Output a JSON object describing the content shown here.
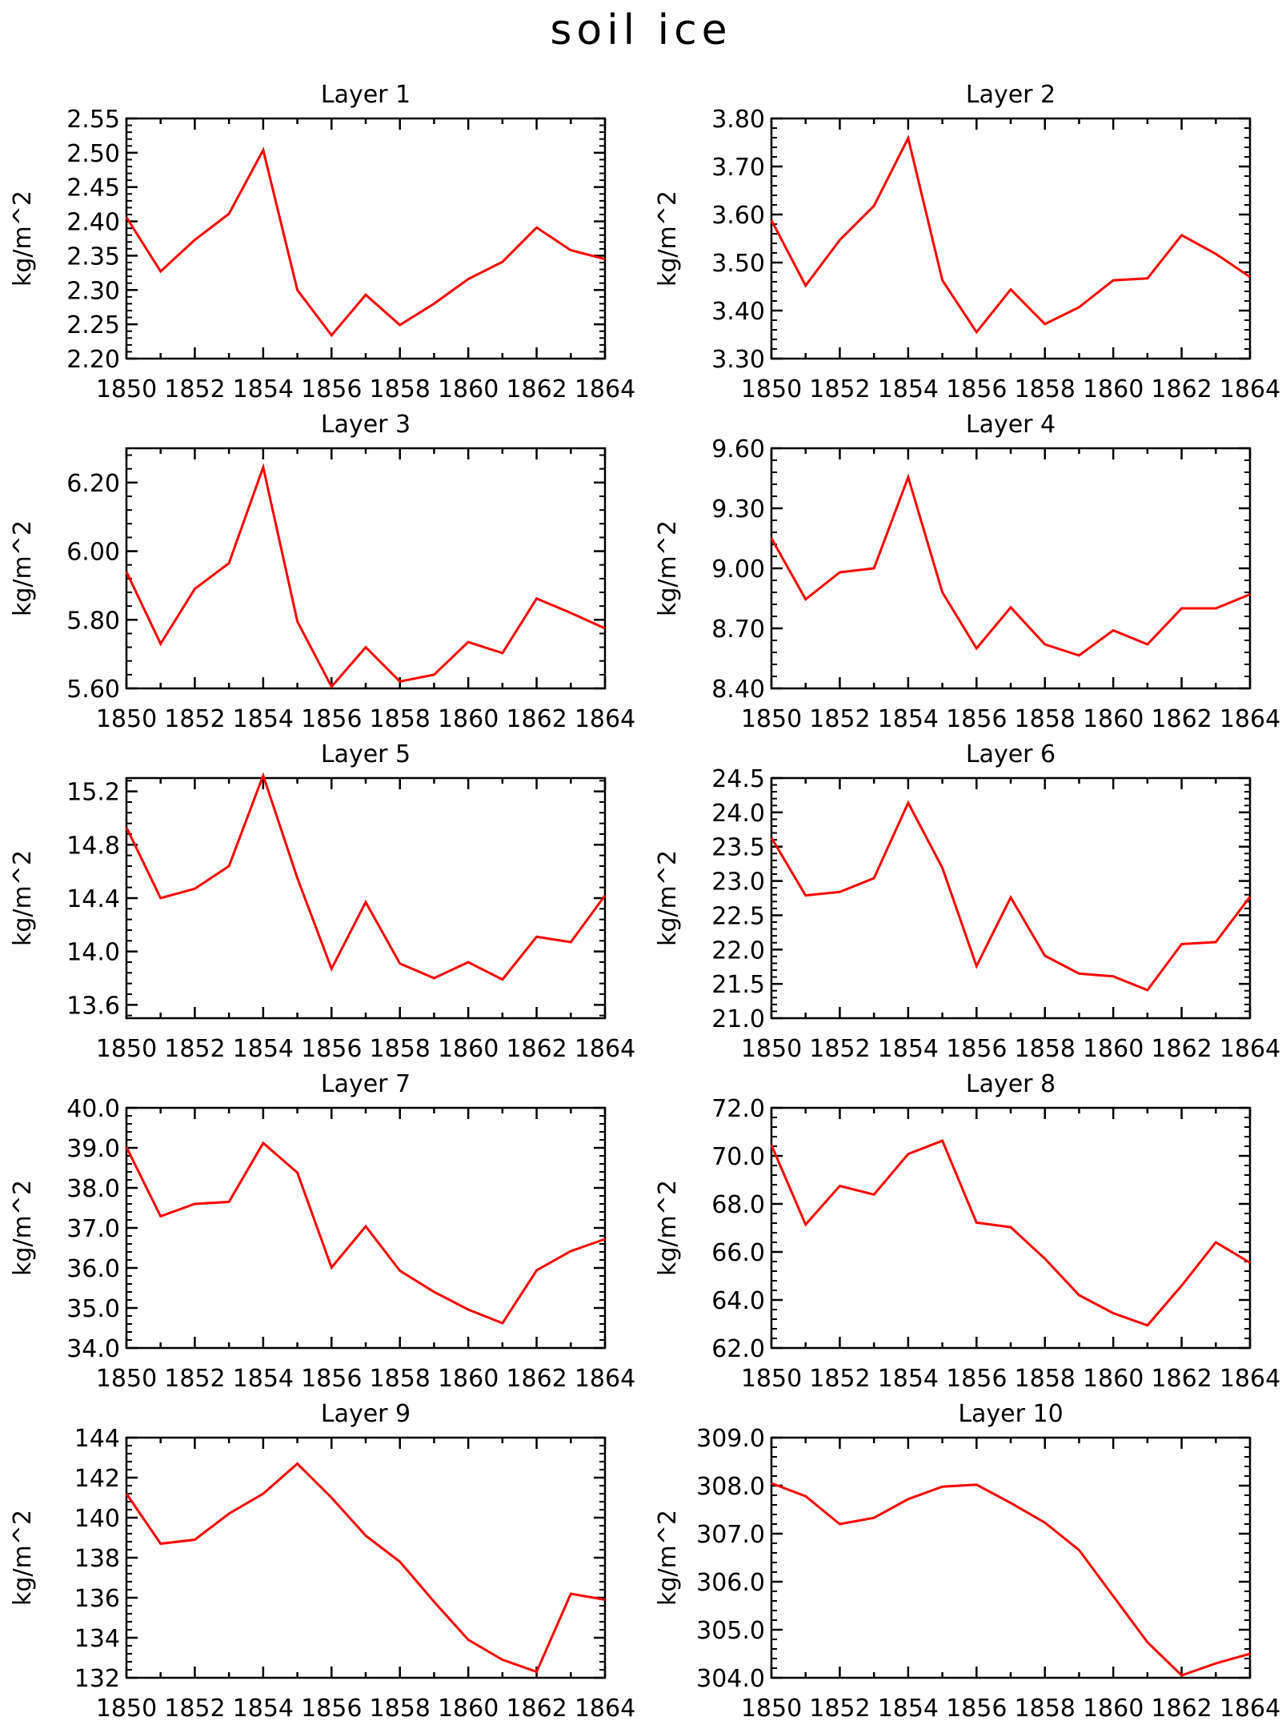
{
  "title": "soil ice",
  "chart_data": [
    {
      "type": "line",
      "title": "Layer 1",
      "ylabel": "kg/m^2",
      "x": [
        1850,
        1851,
        1852,
        1853,
        1854,
        1855,
        1856,
        1857,
        1858,
        1859,
        1860,
        1861,
        1862,
        1863,
        1864
      ],
      "ylim": [
        2.2,
        2.55
      ],
      "yticks": [
        "2.20",
        "2.25",
        "2.30",
        "2.35",
        "2.40",
        "2.45",
        "2.50",
        "2.55"
      ],
      "xticks": [
        "1850",
        "1852",
        "1854",
        "1856",
        "1858",
        "1860",
        "1862",
        "1864"
      ],
      "series": [
        {
          "values": [
            2.406,
            2.327,
            2.373,
            2.411,
            2.504,
            2.3,
            2.234,
            2.293,
            2.249,
            2.28,
            2.316,
            2.341,
            2.391,
            2.358,
            2.345
          ]
        }
      ],
      "line_color": "#ff0000",
      "grid": false
    },
    {
      "type": "line",
      "title": "Layer 2",
      "ylabel": "kg/m^2",
      "x": [
        1850,
        1851,
        1852,
        1853,
        1854,
        1855,
        1856,
        1857,
        1858,
        1859,
        1860,
        1861,
        1862,
        1863,
        1864
      ],
      "ylim": [
        3.3,
        3.8
      ],
      "yticks": [
        "3.30",
        "3.40",
        "3.50",
        "3.60",
        "3.70",
        "3.80"
      ],
      "xticks": [
        "1850",
        "1852",
        "1854",
        "1856",
        "1858",
        "1860",
        "1862",
        "1864"
      ],
      "series": [
        {
          "values": [
            3.588,
            3.452,
            3.547,
            3.618,
            3.759,
            3.463,
            3.355,
            3.444,
            3.372,
            3.407,
            3.463,
            3.467,
            3.557,
            3.518,
            3.47
          ]
        }
      ],
      "line_color": "#ff0000",
      "grid": false
    },
    {
      "type": "line",
      "title": "Layer 3",
      "ylabel": "kg/m^2",
      "x": [
        1850,
        1851,
        1852,
        1853,
        1854,
        1855,
        1856,
        1857,
        1858,
        1859,
        1860,
        1861,
        1862,
        1863,
        1864
      ],
      "ylim": [
        5.6,
        6.3
      ],
      "yticks": [
        "5.60",
        "5.80",
        "6.00",
        "6.20"
      ],
      "xticks": [
        "1850",
        "1852",
        "1854",
        "1856",
        "1858",
        "1860",
        "1862",
        "1864"
      ],
      "series": [
        {
          "values": [
            5.94,
            5.73,
            5.89,
            5.965,
            6.245,
            5.795,
            5.605,
            5.72,
            5.62,
            5.64,
            5.735,
            5.703,
            5.862,
            5.82,
            5.775
          ]
        }
      ],
      "line_color": "#ff0000",
      "grid": false
    },
    {
      "type": "line",
      "title": "Layer 4",
      "ylabel": "kg/m^2",
      "x": [
        1850,
        1851,
        1852,
        1853,
        1854,
        1855,
        1856,
        1857,
        1858,
        1859,
        1860,
        1861,
        1862,
        1863,
        1864
      ],
      "ylim": [
        8.4,
        9.6
      ],
      "yticks": [
        "8.40",
        "8.70",
        "9.00",
        "9.30",
        "9.60"
      ],
      "xticks": [
        "1850",
        "1852",
        "1854",
        "1856",
        "1858",
        "1860",
        "1862",
        "1864"
      ],
      "series": [
        {
          "values": [
            9.15,
            8.845,
            8.98,
            9.0,
            9.455,
            8.88,
            8.6,
            8.805,
            8.62,
            8.565,
            8.69,
            8.62,
            8.8,
            8.8,
            8.87
          ]
        }
      ],
      "line_color": "#ff0000",
      "grid": false
    },
    {
      "type": "line",
      "title": "Layer 5",
      "ylabel": "kg/m^2",
      "x": [
        1850,
        1851,
        1852,
        1853,
        1854,
        1855,
        1856,
        1857,
        1858,
        1859,
        1860,
        1861,
        1862,
        1863,
        1864
      ],
      "ylim": [
        13.5,
        15.3
      ],
      "yticks": [
        "13.6",
        "14.0",
        "14.4",
        "14.8",
        "15.2"
      ],
      "xticks": [
        "1850",
        "1852",
        "1854",
        "1856",
        "1858",
        "1860",
        "1862",
        "1864"
      ],
      "series": [
        {
          "values": [
            14.93,
            14.4,
            14.47,
            14.64,
            15.32,
            14.55,
            13.87,
            14.37,
            13.91,
            13.8,
            13.92,
            13.79,
            14.11,
            14.07,
            14.42
          ]
        }
      ],
      "line_color": "#ff0000",
      "grid": false
    },
    {
      "type": "line",
      "title": "Layer 6",
      "ylabel": "kg/m^2",
      "x": [
        1850,
        1851,
        1852,
        1853,
        1854,
        1855,
        1856,
        1857,
        1858,
        1859,
        1860,
        1861,
        1862,
        1863,
        1864
      ],
      "ylim": [
        21.0,
        24.5
      ],
      "yticks": [
        "21.0",
        "21.5",
        "22.0",
        "22.5",
        "23.0",
        "23.5",
        "24.0",
        "24.5"
      ],
      "xticks": [
        "1850",
        "1852",
        "1854",
        "1856",
        "1858",
        "1860",
        "1862",
        "1864"
      ],
      "series": [
        {
          "values": [
            23.63,
            22.79,
            22.84,
            23.04,
            24.14,
            23.19,
            21.76,
            22.76,
            21.91,
            21.65,
            21.61,
            21.41,
            22.08,
            22.11,
            22.77
          ]
        }
      ],
      "line_color": "#ff0000",
      "grid": false
    },
    {
      "type": "line",
      "title": "Layer 7",
      "ylabel": "kg/m^2",
      "x": [
        1850,
        1851,
        1852,
        1853,
        1854,
        1855,
        1856,
        1857,
        1858,
        1859,
        1860,
        1861,
        1862,
        1863,
        1864
      ],
      "ylim": [
        34.0,
        40.0
      ],
      "yticks": [
        "34.0",
        "35.0",
        "36.0",
        "37.0",
        "38.0",
        "39.0",
        "40.0"
      ],
      "xticks": [
        "1850",
        "1852",
        "1854",
        "1856",
        "1858",
        "1860",
        "1862",
        "1864"
      ],
      "series": [
        {
          "values": [
            39.02,
            37.29,
            37.6,
            37.65,
            39.12,
            38.38,
            36.01,
            37.04,
            35.93,
            35.4,
            34.96,
            34.62,
            35.94,
            36.42,
            36.72
          ]
        }
      ],
      "line_color": "#ff0000",
      "grid": false
    },
    {
      "type": "line",
      "title": "Layer 8",
      "ylabel": "kg/m^2",
      "x": [
        1850,
        1851,
        1852,
        1853,
        1854,
        1855,
        1856,
        1857,
        1858,
        1859,
        1860,
        1861,
        1862,
        1863,
        1864
      ],
      "ylim": [
        62.0,
        72.0
      ],
      "yticks": [
        "62.0",
        "64.0",
        "66.0",
        "68.0",
        "70.0",
        "72.0"
      ],
      "xticks": [
        "1850",
        "1852",
        "1854",
        "1856",
        "1858",
        "1860",
        "1862",
        "1864"
      ],
      "series": [
        {
          "values": [
            70.45,
            67.14,
            68.75,
            68.39,
            70.08,
            70.63,
            67.22,
            67.03,
            65.72,
            64.2,
            63.45,
            62.94,
            64.6,
            66.4,
            65.55
          ]
        }
      ],
      "line_color": "#ff0000",
      "grid": false
    },
    {
      "type": "line",
      "title": "Layer 9",
      "ylabel": "kg/m^2",
      "x": [
        1850,
        1851,
        1852,
        1853,
        1854,
        1855,
        1856,
        1857,
        1858,
        1859,
        1860,
        1861,
        1862,
        1863,
        1864
      ],
      "ylim": [
        132,
        144
      ],
      "yticks": [
        "132",
        "134",
        "136",
        "138",
        "140",
        "142",
        "144"
      ],
      "xticks": [
        "1850",
        "1852",
        "1854",
        "1856",
        "1858",
        "1860",
        "1862",
        "1864"
      ],
      "series": [
        {
          "values": [
            141.2,
            138.7,
            138.9,
            140.2,
            141.2,
            142.7,
            141.0,
            139.1,
            137.8,
            135.8,
            133.9,
            132.9,
            132.3,
            136.2,
            135.9
          ]
        }
      ],
      "line_color": "#ff0000",
      "grid": false
    },
    {
      "type": "line",
      "title": "Layer 10",
      "ylabel": "kg/m^2",
      "x": [
        1850,
        1851,
        1852,
        1853,
        1854,
        1855,
        1856,
        1857,
        1858,
        1859,
        1860,
        1861,
        1862,
        1863,
        1864
      ],
      "ylim": [
        304.0,
        309.0
      ],
      "yticks": [
        "304.0",
        "305.0",
        "306.0",
        "307.0",
        "308.0",
        "309.0"
      ],
      "xticks": [
        "1850",
        "1852",
        "1854",
        "1856",
        "1858",
        "1860",
        "1862",
        "1864"
      ],
      "series": [
        {
          "values": [
            308.05,
            307.78,
            307.2,
            307.33,
            307.72,
            307.98,
            308.02,
            307.64,
            307.23,
            306.66,
            305.7,
            304.74,
            304.05,
            304.3,
            304.5
          ]
        }
      ],
      "line_color": "#ff0000",
      "grid": false
    }
  ]
}
